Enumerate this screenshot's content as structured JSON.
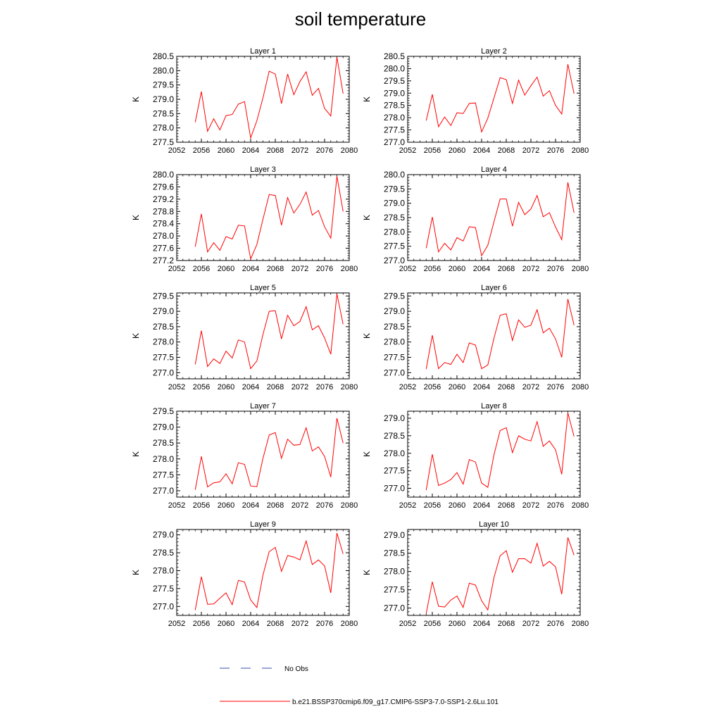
{
  "title": "soil temperature",
  "legend": {
    "obs_label": "No Obs",
    "obs_color": "#3a4fb0",
    "model_label": "b.e21.BSSP370cmip6.f09_g17.CMIP6-SSP3-7.0-SSP1-2.6Lu.101",
    "model_color": "#ff0000"
  },
  "chart_data": [
    {
      "type": "line",
      "title": "Layer 1",
      "ylabel": "K",
      "xlim": [
        2052,
        2080
      ],
      "xticks": [
        "2052",
        "2056",
        "2060",
        "2064",
        "2068",
        "2072",
        "2076",
        "2080"
      ],
      "ylim": [
        277.5,
        280.5
      ],
      "yticks": [
        "277.5",
        "278.0",
        "278.5",
        "279.0",
        "279.5",
        "280.0",
        "280.5"
      ],
      "series": [
        {
          "color": "#ff0000",
          "x": [
            2055,
            2056,
            2057,
            2058,
            2059,
            2060,
            2061,
            2062,
            2063,
            2064,
            2065,
            2066,
            2067,
            2068,
            2069,
            2070,
            2071,
            2072,
            2073,
            2074,
            2075,
            2076,
            2077,
            2078,
            2079
          ],
          "values": [
            278.2,
            279.27,
            277.88,
            278.32,
            277.93,
            278.43,
            278.47,
            278.83,
            278.92,
            277.65,
            278.25,
            279.05,
            279.98,
            279.88,
            278.85,
            279.88,
            279.16,
            279.62,
            279.96,
            279.14,
            279.38,
            278.68,
            278.42,
            280.47,
            279.2
          ]
        }
      ]
    },
    {
      "type": "line",
      "title": "Layer 2",
      "ylabel": "K",
      "xlim": [
        2052,
        2080
      ],
      "xticks": [
        "2052",
        "2056",
        "2060",
        "2064",
        "2068",
        "2072",
        "2076",
        "2080"
      ],
      "ylim": [
        277.0,
        280.5
      ],
      "yticks": [
        "277.0",
        "277.5",
        "278.0",
        "278.5",
        "279.0",
        "279.5",
        "280.0",
        "280.5"
      ],
      "series": [
        {
          "color": "#ff0000",
          "x": [
            2055,
            2056,
            2057,
            2058,
            2059,
            2060,
            2061,
            2062,
            2063,
            2064,
            2065,
            2066,
            2067,
            2068,
            2069,
            2070,
            2071,
            2072,
            2073,
            2074,
            2075,
            2076,
            2077,
            2078,
            2079
          ],
          "values": [
            277.88,
            278.95,
            277.63,
            278.03,
            277.68,
            278.2,
            278.17,
            278.58,
            278.6,
            277.42,
            277.98,
            278.8,
            279.63,
            279.55,
            278.58,
            279.53,
            278.92,
            279.3,
            279.65,
            278.88,
            279.1,
            278.5,
            278.15,
            280.18,
            278.98
          ]
        }
      ]
    },
    {
      "type": "line",
      "title": "Layer 3",
      "ylabel": "K",
      "xlim": [
        2052,
        2080
      ],
      "xticks": [
        "2052",
        "2056",
        "2060",
        "2064",
        "2068",
        "2072",
        "2076",
        "2080"
      ],
      "ylim": [
        277.2,
        280.0
      ],
      "yticks": [
        "277.2",
        "277.6",
        "278.0",
        "278.4",
        "278.8",
        "279.2",
        "279.6",
        "280.0"
      ],
      "series": [
        {
          "color": "#ff0000",
          "x": [
            2055,
            2056,
            2057,
            2058,
            2059,
            2060,
            2061,
            2062,
            2063,
            2064,
            2065,
            2066,
            2067,
            2068,
            2069,
            2070,
            2071,
            2072,
            2073,
            2074,
            2075,
            2076,
            2077,
            2078,
            2079
          ],
          "values": [
            277.65,
            278.72,
            277.48,
            277.78,
            277.53,
            277.98,
            277.9,
            278.35,
            278.33,
            277.25,
            277.72,
            278.55,
            279.35,
            279.32,
            278.35,
            279.25,
            278.75,
            279.03,
            279.43,
            278.68,
            278.83,
            278.3,
            277.93,
            279.95,
            278.8
          ]
        }
      ]
    },
    {
      "type": "line",
      "title": "Layer 4",
      "ylabel": "K",
      "xlim": [
        2052,
        2080
      ],
      "xticks": [
        "2052",
        "2056",
        "2060",
        "2064",
        "2068",
        "2072",
        "2076",
        "2080"
      ],
      "ylim": [
        277.0,
        280.0
      ],
      "yticks": [
        "277.0",
        "277.5",
        "278.0",
        "278.5",
        "279.0",
        "279.5",
        "280.0"
      ],
      "series": [
        {
          "color": "#ff0000",
          "x": [
            2055,
            2056,
            2057,
            2058,
            2059,
            2060,
            2061,
            2062,
            2063,
            2064,
            2065,
            2066,
            2067,
            2068,
            2069,
            2070,
            2071,
            2072,
            2073,
            2074,
            2075,
            2076,
            2077,
            2078,
            2079
          ],
          "values": [
            277.43,
            278.52,
            277.3,
            277.6,
            277.37,
            277.8,
            277.68,
            278.18,
            278.15,
            277.17,
            277.53,
            278.35,
            279.15,
            279.15,
            278.2,
            279.03,
            278.6,
            278.8,
            279.27,
            278.53,
            278.67,
            278.17,
            277.73,
            279.73,
            278.67
          ]
        }
      ]
    },
    {
      "type": "line",
      "title": "Layer 5",
      "ylabel": "K",
      "xlim": [
        2052,
        2080
      ],
      "xticks": [
        "2052",
        "2056",
        "2060",
        "2064",
        "2068",
        "2072",
        "2076",
        "2080"
      ],
      "ylim": [
        276.8,
        279.6
      ],
      "yticks": [
        "277.0",
        "277.5",
        "278.0",
        "278.5",
        "279.0",
        "279.5"
      ],
      "series": [
        {
          "color": "#ff0000",
          "x": [
            2055,
            2056,
            2057,
            2058,
            2059,
            2060,
            2061,
            2062,
            2063,
            2064,
            2065,
            2066,
            2067,
            2068,
            2069,
            2070,
            2071,
            2072,
            2073,
            2074,
            2075,
            2076,
            2077,
            2078,
            2079
          ],
          "values": [
            277.27,
            278.37,
            277.2,
            277.45,
            277.3,
            277.7,
            277.48,
            278.07,
            278.0,
            277.13,
            277.38,
            278.25,
            279.0,
            279.02,
            278.1,
            278.87,
            278.53,
            278.67,
            279.15,
            278.4,
            278.53,
            278.13,
            277.6,
            279.57,
            278.58
          ]
        }
      ]
    },
    {
      "type": "line",
      "title": "Layer 6",
      "ylabel": "K",
      "xlim": [
        2052,
        2080
      ],
      "xticks": [
        "2052",
        "2056",
        "2060",
        "2064",
        "2068",
        "2072",
        "2076",
        "2080"
      ],
      "ylim": [
        276.8,
        279.6
      ],
      "yticks": [
        "277.0",
        "277.5",
        "278.0",
        "278.5",
        "279.0",
        "279.5"
      ],
      "series": [
        {
          "color": "#ff0000",
          "x": [
            2055,
            2056,
            2057,
            2058,
            2059,
            2060,
            2061,
            2062,
            2063,
            2064,
            2065,
            2066,
            2067,
            2068,
            2069,
            2070,
            2071,
            2072,
            2073,
            2074,
            2075,
            2076,
            2077,
            2078,
            2079
          ],
          "values": [
            277.12,
            278.22,
            277.13,
            277.33,
            277.27,
            277.6,
            277.33,
            277.97,
            277.9,
            277.13,
            277.25,
            278.12,
            278.87,
            278.92,
            278.05,
            278.72,
            278.48,
            278.55,
            279.05,
            278.3,
            278.45,
            278.1,
            277.5,
            279.4,
            278.55
          ]
        }
      ]
    },
    {
      "type": "line",
      "title": "Layer 7",
      "ylabel": "K",
      "xlim": [
        2052,
        2080
      ],
      "xticks": [
        "2052",
        "2056",
        "2060",
        "2064",
        "2068",
        "2072",
        "2076",
        "2080"
      ],
      "ylim": [
        276.8,
        279.5
      ],
      "yticks": [
        "277.0",
        "277.5",
        "278.0",
        "278.5",
        "279.0",
        "279.5"
      ],
      "series": [
        {
          "color": "#ff0000",
          "x": [
            2055,
            2056,
            2057,
            2058,
            2059,
            2060,
            2061,
            2062,
            2063,
            2064,
            2065,
            2066,
            2067,
            2068,
            2069,
            2070,
            2071,
            2072,
            2073,
            2074,
            2075,
            2076,
            2077,
            2078,
            2079
          ],
          "values": [
            277.03,
            278.08,
            277.12,
            277.25,
            277.28,
            277.53,
            277.22,
            277.88,
            277.83,
            277.15,
            277.13,
            278.02,
            278.75,
            278.83,
            278.02,
            278.62,
            278.43,
            278.45,
            278.98,
            278.25,
            278.38,
            278.08,
            277.43,
            279.28,
            278.5
          ]
        }
      ]
    },
    {
      "type": "line",
      "title": "Layer 8",
      "ylabel": "K",
      "xlim": [
        2052,
        2080
      ],
      "xticks": [
        "2052",
        "2056",
        "2060",
        "2064",
        "2068",
        "2072",
        "2076",
        "2080"
      ],
      "ylim": [
        276.75,
        279.2
      ],
      "yticks": [
        "277.0",
        "277.5",
        "278.0",
        "278.5",
        "279.0"
      ],
      "series": [
        {
          "color": "#ff0000",
          "x": [
            2055,
            2056,
            2057,
            2058,
            2059,
            2060,
            2061,
            2062,
            2063,
            2064,
            2065,
            2066,
            2067,
            2068,
            2069,
            2070,
            2071,
            2072,
            2073,
            2074,
            2075,
            2076,
            2077,
            2078,
            2079
          ],
          "values": [
            276.95,
            277.97,
            277.08,
            277.15,
            277.25,
            277.45,
            277.12,
            277.82,
            277.75,
            277.15,
            277.03,
            277.95,
            278.65,
            278.73,
            278.02,
            278.5,
            278.4,
            278.35,
            278.9,
            278.2,
            278.35,
            278.1,
            277.4,
            279.15,
            278.48
          ]
        }
      ]
    },
    {
      "type": "line",
      "title": "Layer 9",
      "ylabel": "K",
      "xlim": [
        2052,
        2080
      ],
      "xticks": [
        "2052",
        "2056",
        "2060",
        "2064",
        "2068",
        "2072",
        "2076",
        "2080"
      ],
      "ylim": [
        276.75,
        279.15
      ],
      "yticks": [
        "277.0",
        "277.5",
        "278.0",
        "278.5",
        "279.0"
      ],
      "series": [
        {
          "color": "#ff0000",
          "x": [
            2055,
            2056,
            2057,
            2058,
            2059,
            2060,
            2061,
            2062,
            2063,
            2064,
            2065,
            2066,
            2067,
            2068,
            2069,
            2070,
            2071,
            2072,
            2073,
            2074,
            2075,
            2076,
            2077,
            2078,
            2079
          ],
          "values": [
            276.9,
            277.83,
            277.06,
            277.07,
            277.23,
            277.38,
            277.05,
            277.73,
            277.68,
            277.18,
            276.97,
            277.88,
            278.53,
            278.65,
            277.98,
            278.42,
            278.38,
            278.3,
            278.83,
            278.17,
            278.3,
            278.13,
            277.38,
            279.05,
            278.47
          ]
        }
      ]
    },
    {
      "type": "line",
      "title": "Layer 10",
      "ylabel": "K",
      "xlim": [
        2052,
        2080
      ],
      "xticks": [
        "2052",
        "2056",
        "2060",
        "2064",
        "2068",
        "2072",
        "2076",
        "2080"
      ],
      "ylim": [
        276.8,
        279.15
      ],
      "yticks": [
        "277.0",
        "277.5",
        "278.0",
        "278.5",
        "279.0"
      ],
      "series": [
        {
          "color": "#ff0000",
          "x": [
            2055,
            2056,
            2057,
            2058,
            2059,
            2060,
            2061,
            2062,
            2063,
            2064,
            2065,
            2066,
            2067,
            2068,
            2069,
            2070,
            2071,
            2072,
            2073,
            2074,
            2075,
            2076,
            2077,
            2078,
            2079
          ],
          "values": [
            276.85,
            277.72,
            277.05,
            277.03,
            277.22,
            277.33,
            277.02,
            277.68,
            277.63,
            277.2,
            276.95,
            277.83,
            278.43,
            278.57,
            277.98,
            278.35,
            278.35,
            278.23,
            278.77,
            278.15,
            278.28,
            278.13,
            277.38,
            278.93,
            278.45
          ]
        }
      ]
    }
  ]
}
